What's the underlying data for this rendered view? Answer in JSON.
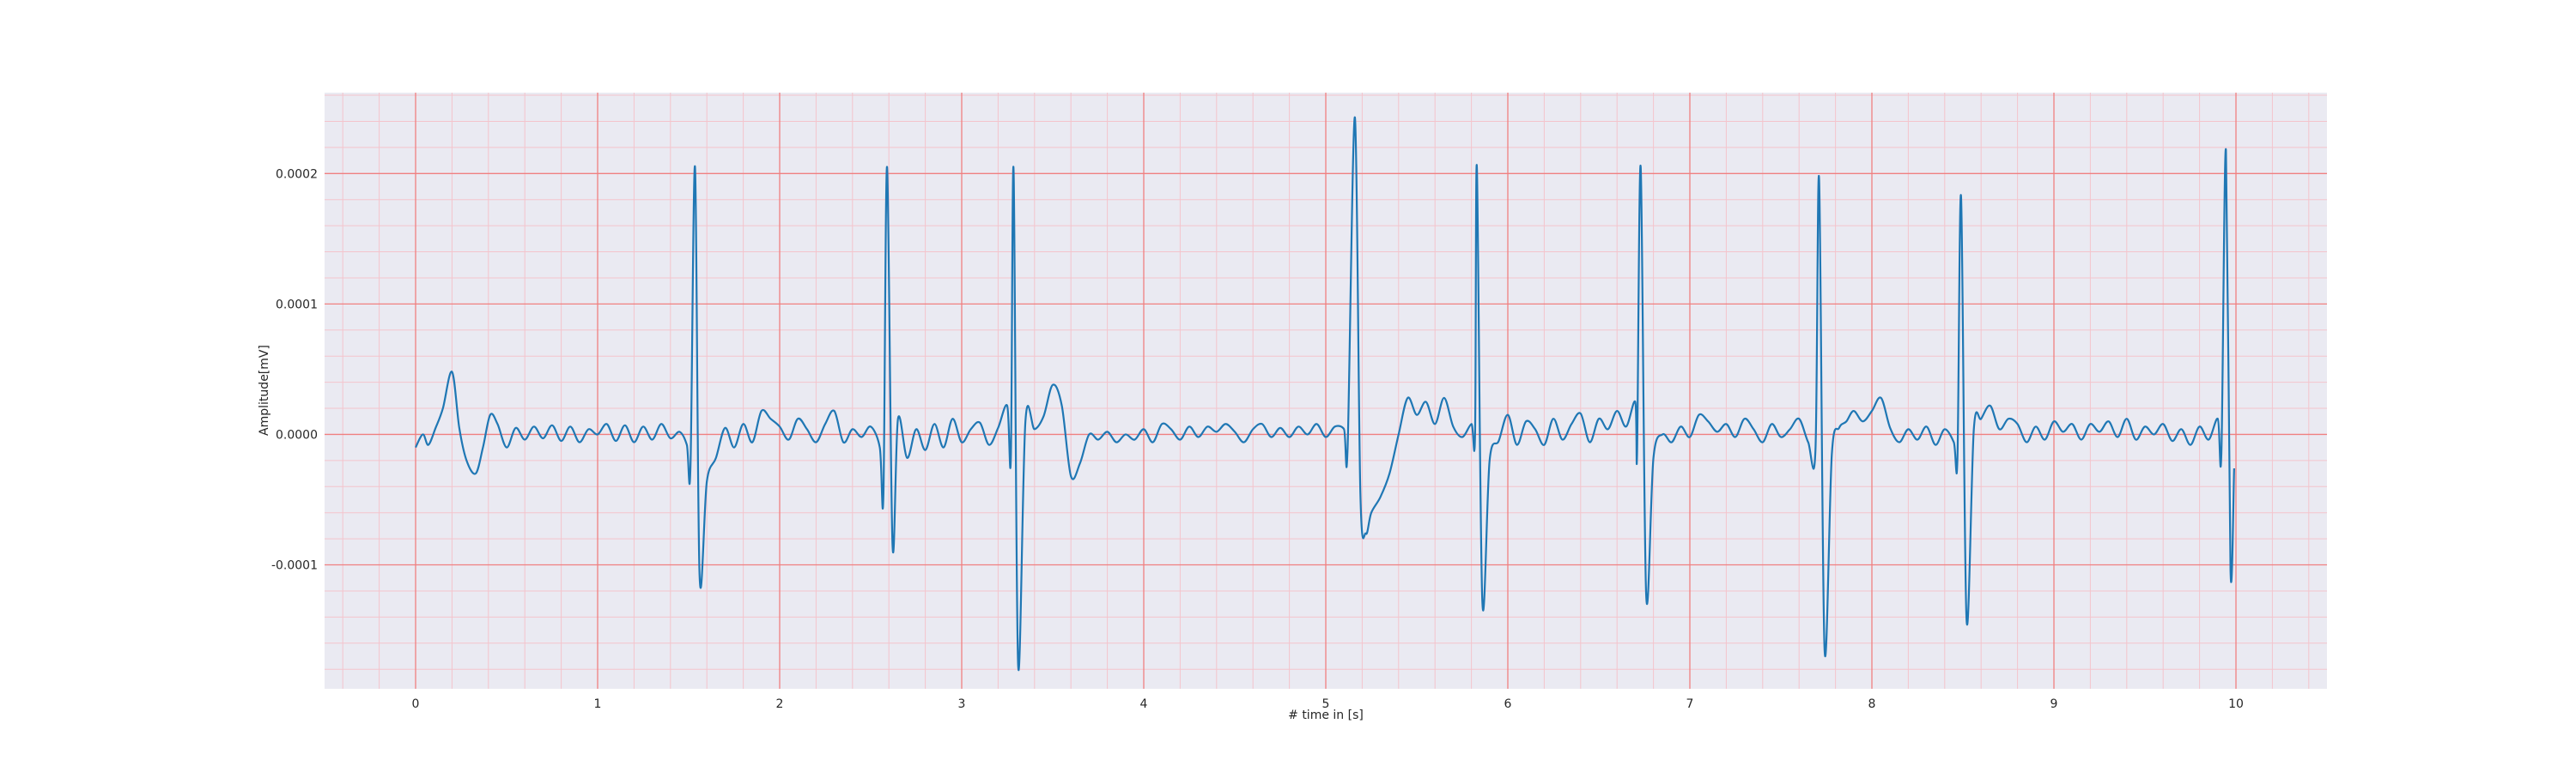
{
  "chart_data": {
    "type": "line",
    "xlabel": "# time in [s]",
    "ylabel": "Amplitude[mV]",
    "xlim": [
      -0.5,
      10.5
    ],
    "ylim": [
      -0.000195,
      0.000262
    ],
    "x_ticks": [
      0,
      1,
      2,
      3,
      4,
      5,
      6,
      7,
      8,
      9,
      10
    ],
    "x_tick_labels": [
      "0",
      "1",
      "2",
      "3",
      "4",
      "5",
      "6",
      "7",
      "8",
      "9",
      "10"
    ],
    "y_ticks": [
      -0.0001,
      0.0,
      0.0001,
      0.0002
    ],
    "y_tick_labels": [
      "-0.0001",
      "0.0000",
      "0.0001",
      "0.0002"
    ],
    "grid": {
      "major": true,
      "minor": true,
      "major_color": "#f08080",
      "minor_color": "#f4c4cc"
    },
    "background_color": "#eaeaf2",
    "series": [
      {
        "color": "#1f77b4",
        "points": [
          [
            0.0,
            -1e-05
          ],
          [
            0.04,
            0.0
          ],
          [
            0.07,
            -8e-06
          ],
          [
            0.11,
            5e-06
          ],
          [
            0.15,
            2e-05
          ],
          [
            0.2,
            4.8e-05
          ],
          [
            0.24,
            5e-06
          ],
          [
            0.28,
            -2e-05
          ],
          [
            0.33,
            -3e-05
          ],
          [
            0.37,
            -1e-05
          ],
          [
            0.41,
            1.5e-05
          ],
          [
            0.45,
            8e-06
          ],
          [
            0.5,
            -1e-05
          ],
          [
            0.55,
            5e-06
          ],
          [
            0.6,
            -4e-06
          ],
          [
            0.65,
            6e-06
          ],
          [
            0.7,
            -3e-06
          ],
          [
            0.75,
            7e-06
          ],
          [
            0.8,
            -5e-06
          ],
          [
            0.85,
            6e-06
          ],
          [
            0.9,
            -6e-06
          ],
          [
            0.95,
            4e-06
          ],
          [
            1.0,
            0.0
          ],
          [
            1.05,
            8e-06
          ],
          [
            1.1,
            -5e-06
          ],
          [
            1.15,
            7e-06
          ],
          [
            1.2,
            -6e-06
          ],
          [
            1.25,
            6e-06
          ],
          [
            1.3,
            -4e-06
          ],
          [
            1.35,
            8e-06
          ],
          [
            1.4,
            -3e-06
          ],
          [
            1.45,
            2e-06
          ],
          [
            1.49,
            -8e-06
          ],
          [
            1.51,
            -2.5e-05
          ],
          [
            1.535,
            0.000205
          ],
          [
            1.56,
            -0.000108
          ],
          [
            1.6,
            -3.6e-05
          ],
          [
            1.65,
            -1.8e-05
          ],
          [
            1.7,
            5e-06
          ],
          [
            1.75,
            -1e-05
          ],
          [
            1.8,
            8e-06
          ],
          [
            1.85,
            -6e-06
          ],
          [
            1.9,
            1.8e-05
          ],
          [
            1.95,
            1.2e-05
          ],
          [
            2.0,
            6e-06
          ],
          [
            2.05,
            -4e-06
          ],
          [
            2.1,
            1.2e-05
          ],
          [
            2.15,
            4e-06
          ],
          [
            2.2,
            -6e-06
          ],
          [
            2.25,
            8e-06
          ],
          [
            2.3,
            1.8e-05
          ],
          [
            2.35,
            -6e-06
          ],
          [
            2.4,
            4e-06
          ],
          [
            2.45,
            -2e-06
          ],
          [
            2.5,
            6e-06
          ],
          [
            2.55,
            -1e-05
          ],
          [
            2.57,
            -4.6e-05
          ],
          [
            2.59,
            0.000205
          ],
          [
            2.62,
            -8.5e-05
          ],
          [
            2.65,
            1.2e-05
          ],
          [
            2.7,
            -1.8e-05
          ],
          [
            2.75,
            4e-06
          ],
          [
            2.8,
            -1.2e-05
          ],
          [
            2.85,
            8e-06
          ],
          [
            2.9,
            -1e-05
          ],
          [
            2.95,
            1.2e-05
          ],
          [
            3.0,
            -6e-06
          ],
          [
            3.05,
            4e-06
          ],
          [
            3.1,
            9e-06
          ],
          [
            3.15,
            -8e-06
          ],
          [
            3.2,
            5e-06
          ],
          [
            3.25,
            2.2e-05
          ],
          [
            3.27,
            -1.8e-05
          ],
          [
            3.285,
            0.000203
          ],
          [
            3.31,
            -0.000177
          ],
          [
            3.35,
            1e-05
          ],
          [
            3.4,
            4e-06
          ],
          [
            3.45,
            1.4e-05
          ],
          [
            3.5,
            3.8e-05
          ],
          [
            3.55,
            2.2e-05
          ],
          [
            3.6,
            -3.2e-05
          ],
          [
            3.65,
            -2.2e-05
          ],
          [
            3.7,
            0.0
          ],
          [
            3.75,
            -4e-06
          ],
          [
            3.8,
            2e-06
          ],
          [
            3.85,
            -6e-06
          ],
          [
            3.9,
            0.0
          ],
          [
            3.95,
            -4e-06
          ],
          [
            4.0,
            4e-06
          ],
          [
            4.05,
            -6e-06
          ],
          [
            4.1,
            8e-06
          ],
          [
            4.15,
            4e-06
          ],
          [
            4.2,
            -4e-06
          ],
          [
            4.25,
            6e-06
          ],
          [
            4.3,
            -2e-06
          ],
          [
            4.35,
            6e-06
          ],
          [
            4.4,
            2e-06
          ],
          [
            4.45,
            8e-06
          ],
          [
            4.5,
            2e-06
          ],
          [
            4.55,
            -6e-06
          ],
          [
            4.6,
            4e-06
          ],
          [
            4.65,
            8e-06
          ],
          [
            4.7,
            -2e-06
          ],
          [
            4.75,
            5e-06
          ],
          [
            4.8,
            -2e-06
          ],
          [
            4.85,
            6e-06
          ],
          [
            4.9,
            0.0
          ],
          [
            4.95,
            8e-06
          ],
          [
            5.0,
            -2e-06
          ],
          [
            5.05,
            6e-06
          ],
          [
            5.1,
            4e-06
          ],
          [
            5.12,
            -1e-05
          ],
          [
            5.16,
            0.000243
          ],
          [
            5.19,
            -4.5e-05
          ],
          [
            5.22,
            -7.6e-05
          ],
          [
            5.25,
            -6e-05
          ],
          [
            5.3,
            -4.8e-05
          ],
          [
            5.35,
            -3e-05
          ],
          [
            5.4,
            0.0
          ],
          [
            5.45,
            2.8e-05
          ],
          [
            5.5,
            1.5e-05
          ],
          [
            5.55,
            2.5e-05
          ],
          [
            5.6,
            8e-06
          ],
          [
            5.65,
            2.8e-05
          ],
          [
            5.7,
            6e-06
          ],
          [
            5.75,
            -2e-06
          ],
          [
            5.8,
            8e-06
          ],
          [
            5.82,
            0.0
          ],
          [
            5.83,
            0.000205
          ],
          [
            5.86,
            -0.000128
          ],
          [
            5.9,
            -2e-05
          ],
          [
            5.95,
            -5e-06
          ],
          [
            6.0,
            1.5e-05
          ],
          [
            6.05,
            -8e-06
          ],
          [
            6.1,
            1e-05
          ],
          [
            6.15,
            4e-06
          ],
          [
            6.2,
            -8e-06
          ],
          [
            6.25,
            1.2e-05
          ],
          [
            6.3,
            -4e-06
          ],
          [
            6.35,
            8e-06
          ],
          [
            6.4,
            1.6e-05
          ],
          [
            6.45,
            -6e-06
          ],
          [
            6.5,
            1.2e-05
          ],
          [
            6.55,
            4e-06
          ],
          [
            6.6,
            1.8e-05
          ],
          [
            6.65,
            6e-06
          ],
          [
            6.7,
            2.5e-05
          ],
          [
            6.71,
            -1.5e-05
          ],
          [
            6.73,
            0.000205
          ],
          [
            6.76,
            -0.000123
          ],
          [
            6.8,
            -1.8e-05
          ],
          [
            6.85,
            0.0
          ],
          [
            6.9,
            -6e-06
          ],
          [
            6.95,
            6e-06
          ],
          [
            7.0,
            -2e-06
          ],
          [
            7.05,
            1.5e-05
          ],
          [
            7.1,
            1e-05
          ],
          [
            7.15,
            2e-06
          ],
          [
            7.2,
            8e-06
          ],
          [
            7.25,
            -2e-06
          ],
          [
            7.3,
            1.2e-05
          ],
          [
            7.35,
            4e-06
          ],
          [
            7.4,
            -6e-06
          ],
          [
            7.45,
            8e-06
          ],
          [
            7.5,
            -2e-06
          ],
          [
            7.55,
            4e-06
          ],
          [
            7.6,
            1.2e-05
          ],
          [
            7.65,
            -6e-06
          ],
          [
            7.69,
            -1.2e-05
          ],
          [
            7.71,
            0.000196
          ],
          [
            7.74,
            -0.000165
          ],
          [
            7.78,
            -1.5e-05
          ],
          [
            7.82,
            5e-06
          ],
          [
            7.86,
            1e-05
          ],
          [
            7.9,
            1.8e-05
          ],
          [
            7.95,
            1e-05
          ],
          [
            8.0,
            1.8e-05
          ],
          [
            8.05,
            2.8e-05
          ],
          [
            8.1,
            5e-06
          ],
          [
            8.15,
            -6e-06
          ],
          [
            8.2,
            4e-06
          ],
          [
            8.25,
            -4e-06
          ],
          [
            8.3,
            6e-06
          ],
          [
            8.35,
            -8e-06
          ],
          [
            8.4,
            4e-06
          ],
          [
            8.45,
            -6e-06
          ],
          [
            8.47,
            -1.8e-05
          ],
          [
            8.49,
            0.000182
          ],
          [
            8.52,
            -0.000142
          ],
          [
            8.56,
            4e-06
          ],
          [
            8.6,
            1.2e-05
          ],
          [
            8.65,
            2.2e-05
          ],
          [
            8.7,
            4e-06
          ],
          [
            8.75,
            1.2e-05
          ],
          [
            8.8,
            8e-06
          ],
          [
            8.85,
            -6e-06
          ],
          [
            8.9,
            6e-06
          ],
          [
            8.95,
            -4e-06
          ],
          [
            9.0,
            1e-05
          ],
          [
            9.05,
            2e-06
          ],
          [
            9.1,
            8e-06
          ],
          [
            9.15,
            -4e-06
          ],
          [
            9.2,
            8e-06
          ],
          [
            9.25,
            2e-06
          ],
          [
            9.3,
            1e-05
          ],
          [
            9.35,
            -2e-06
          ],
          [
            9.4,
            1.2e-05
          ],
          [
            9.45,
            -4e-06
          ],
          [
            9.5,
            6e-06
          ],
          [
            9.55,
            0.0
          ],
          [
            9.6,
            8e-06
          ],
          [
            9.65,
            -5e-06
          ],
          [
            9.7,
            4e-06
          ],
          [
            9.75,
            -8e-06
          ],
          [
            9.8,
            6e-06
          ],
          [
            9.85,
            -4e-06
          ],
          [
            9.9,
            1.2e-05
          ],
          [
            9.92,
            -1.4e-05
          ],
          [
            9.945,
            0.000218
          ],
          [
            9.97,
            -0.000104
          ],
          [
            9.99,
            -2.6e-05
          ]
        ]
      }
    ]
  }
}
